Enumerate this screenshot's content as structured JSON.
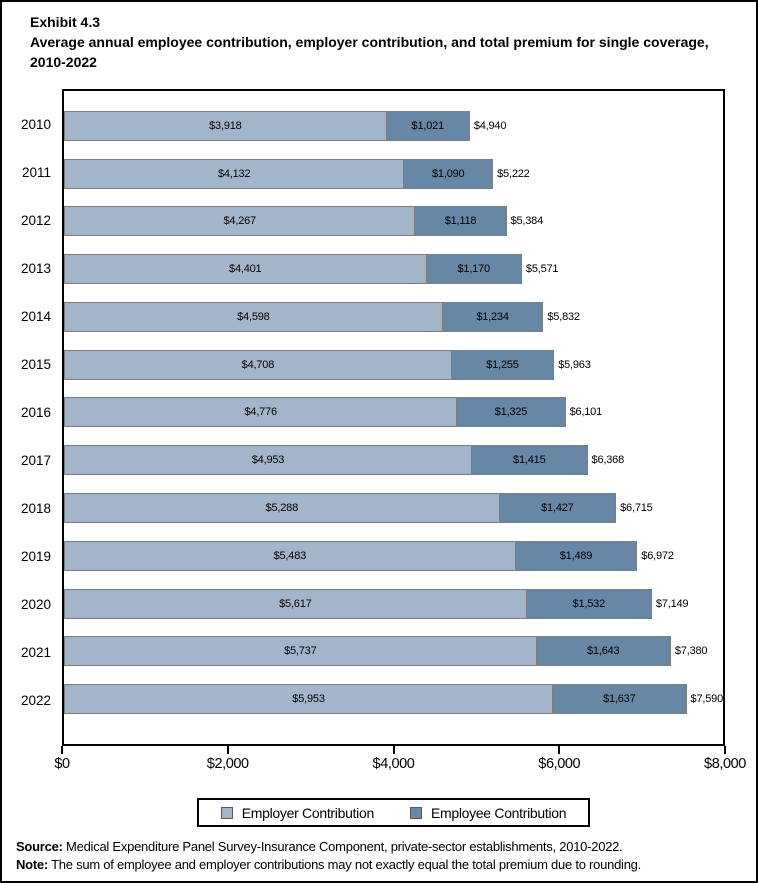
{
  "header": {
    "exhibit": "Exhibit 4.3",
    "title": "Average annual employee contribution, employer contribution, and total premium for single coverage, 2010-2022"
  },
  "chart_data": {
    "type": "bar",
    "orientation": "horizontal",
    "stacked": true,
    "title": "Average annual employee contribution, employer contribution, and total premium for single coverage, 2010-2022",
    "categories": [
      "2010",
      "2011",
      "2012",
      "2013",
      "2014",
      "2015",
      "2016",
      "2017",
      "2018",
      "2019",
      "2020",
      "2021",
      "2022"
    ],
    "series": [
      {
        "name": "Employer Contribution",
        "color": "#a3b5ca",
        "values": [
          3918,
          4132,
          4267,
          4401,
          4598,
          4708,
          4776,
          4953,
          5288,
          5483,
          5617,
          5737,
          5953
        ]
      },
      {
        "name": "Employee Contribution",
        "color": "#6687a5",
        "values": [
          1021,
          1090,
          1118,
          1170,
          1234,
          1255,
          1325,
          1415,
          1427,
          1489,
          1532,
          1643,
          1637
        ]
      }
    ],
    "totals": [
      4940,
      5222,
      5384,
      5571,
      5832,
      5963,
      6101,
      6368,
      6715,
      6972,
      7149,
      7380,
      7590
    ],
    "value_prefix": "$",
    "xlim": [
      0,
      8000
    ],
    "x_ticks": [
      {
        "value": 0,
        "label": "$0"
      },
      {
        "value": 2000,
        "label": "$2,000"
      },
      {
        "value": 4000,
        "label": "$4,000"
      },
      {
        "value": 6000,
        "label": "$6,000"
      },
      {
        "value": 8000,
        "label": "$8,000"
      }
    ],
    "grid": false,
    "legend_position": "bottom-center",
    "bar_border_color": "#7d7d7d"
  },
  "footer": {
    "source_label": "Source:",
    "source_text": " Medical Expenditure Panel Survey-Insurance Component, private-sector establishments, 2010-2022.",
    "note_label": "Note:",
    "note_text": " The sum of employee and employer contributions may not exactly equal the total premium due to rounding."
  }
}
